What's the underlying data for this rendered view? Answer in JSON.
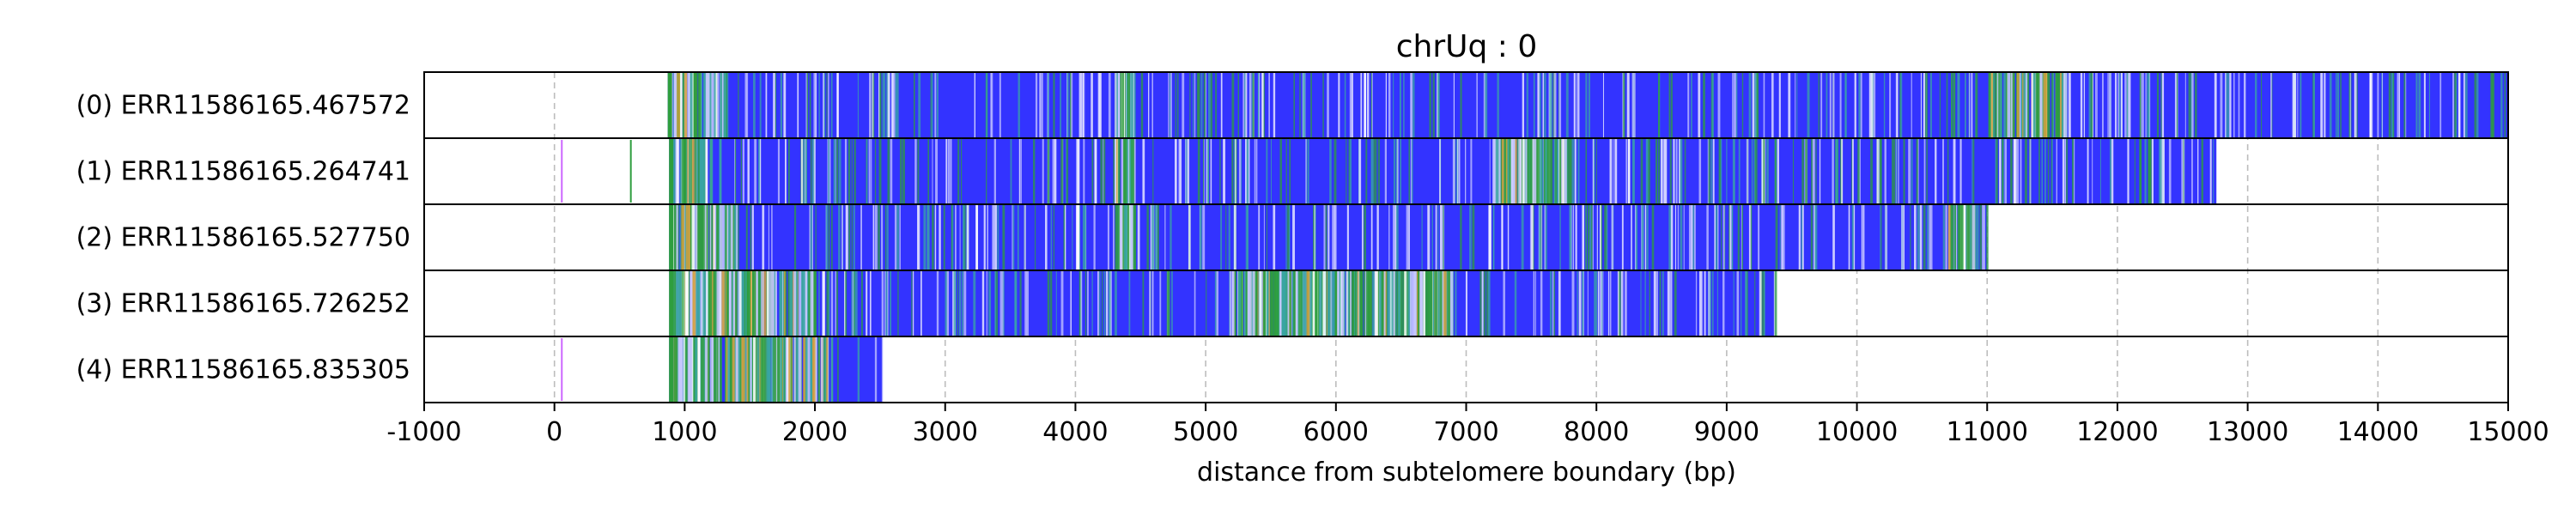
{
  "chart_data": {
    "type": "heatmap",
    "title": "chrUq : 0",
    "xlabel": "distance from subtelomere boundary (bp)",
    "ylabel": "",
    "xlim": [
      -1000,
      15000
    ],
    "grid": "x dashed",
    "x_ticks": [
      -1000,
      0,
      1000,
      2000,
      3000,
      4000,
      5000,
      6000,
      7000,
      8000,
      9000,
      10000,
      11000,
      12000,
      13000,
      14000,
      15000
    ],
    "colors": {
      "read_fill": "#3333ff",
      "variant_green": "#2e9e3e",
      "variant_teal": "#3aa5a5",
      "variant_light": "#c8c8ff",
      "variant_white": "#ffffff",
      "variant_orange": "#d2a03c",
      "marker_violet": "#cc66ff",
      "grid": "#bdbdbd"
    },
    "reads": [
      {
        "label": "(0) ERR11586165.467572",
        "start": 870,
        "end": 15000,
        "markers": [],
        "dense_regions": [
          [
            870,
            1300
          ],
          [
            4300,
            4450
          ],
          [
            11000,
            11600
          ]
        ]
      },
      {
        "label": "(1) ERR11586165.264741",
        "start": 880,
        "end": 12760,
        "markers": [
          50,
          580
        ],
        "dense_regions": [
          [
            880,
            1200
          ],
          [
            4300,
            4450
          ],
          [
            7200,
            7800
          ]
        ]
      },
      {
        "label": "(2) ERR11586165.527750",
        "start": 880,
        "end": 11000,
        "markers": [],
        "dense_regions": [
          [
            880,
            1400
          ],
          [
            4300,
            4450
          ],
          [
            10700,
            10900
          ]
        ]
      },
      {
        "label": "(3) ERR11586165.726252",
        "start": 880,
        "end": 9380,
        "markers": [],
        "dense_regions": [
          [
            880,
            2000
          ],
          [
            5200,
            6900
          ]
        ]
      },
      {
        "label": "(4) ERR11586165.835305",
        "start": 880,
        "end": 2520,
        "markers": [
          50
        ],
        "dense_regions": [
          [
            880,
            2100
          ]
        ]
      }
    ]
  }
}
